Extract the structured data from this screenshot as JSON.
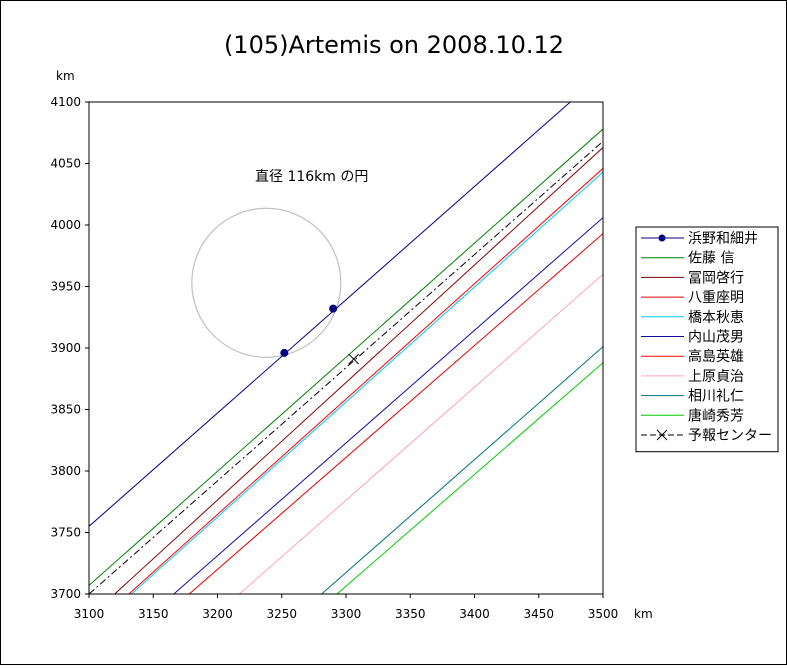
{
  "chart_data": {
    "type": "line",
    "title": "(105)Artemis on 2008.10.12",
    "xlabel": "km",
    "ylabel": "km",
    "xlim": [
      3100,
      3500
    ],
    "ylim": [
      3700,
      4100
    ],
    "xticks": [
      "3100",
      "3150",
      "3200",
      "3250",
      "3300",
      "3350",
      "3400",
      "3450",
      "3500"
    ],
    "yticks": [
      "3700",
      "3750",
      "3800",
      "3850",
      "3900",
      "3950",
      "4000",
      "4050",
      "4100"
    ],
    "grid": false,
    "legend_position": "right",
    "annotation": "直径 116km の円",
    "circle": {
      "cx": 3238,
      "cy": 3953,
      "diameter_km": 116,
      "color": "#c0c0c0"
    },
    "series": [
      {
        "name": "浜野和細井",
        "color": "#000080",
        "marker": true,
        "line": [
          [
            3100,
            3755
          ],
          [
            3480,
            4105
          ]
        ],
        "points": [
          [
            3252,
            3896
          ],
          [
            3290,
            3932
          ]
        ]
      },
      {
        "name": "佐藤 信",
        "color": "#008000",
        "line": [
          [
            3100,
            3707
          ],
          [
            3500,
            4078
          ]
        ]
      },
      {
        "name": "冨岡啓行",
        "color": "#800000",
        "line": [
          [
            3120,
            3700
          ],
          [
            3500,
            4063
          ]
        ]
      },
      {
        "name": "八重座明",
        "color": "#e00000",
        "line": [
          [
            3178,
            3700
          ],
          [
            3500,
            3993
          ]
        ]
      },
      {
        "name": "橋本秋恵",
        "color": "#00ccff",
        "line": [
          [
            3133,
            3700
          ],
          [
            3500,
            4043
          ]
        ]
      },
      {
        "name": "内山茂男",
        "color": "#1010a0",
        "line": [
          [
            3166,
            3700
          ],
          [
            3500,
            4006
          ]
        ]
      },
      {
        "name": "高島英雄",
        "color": "#ff0000",
        "line": [
          [
            3131,
            3700
          ],
          [
            3500,
            4046
          ]
        ]
      },
      {
        "name": "上原貞治",
        "color": "#ffa0c0",
        "line": [
          [
            3217,
            3700
          ],
          [
            3500,
            3960
          ]
        ]
      },
      {
        "name": "相川礼仁",
        "color": "#007080",
        "line": [
          [
            3281,
            3700
          ],
          [
            3500,
            3901
          ]
        ]
      },
      {
        "name": "唐崎秀芳",
        "color": "#00cc00",
        "line": [
          [
            3293,
            3700
          ],
          [
            3500,
            3888
          ]
        ]
      },
      {
        "name": "予報センター",
        "color": "#000000",
        "dashed": true,
        "line": [
          [
            3100,
            3700
          ],
          [
            3500,
            4068
          ]
        ],
        "points": [
          [
            3306,
            3891
          ]
        ]
      }
    ]
  }
}
